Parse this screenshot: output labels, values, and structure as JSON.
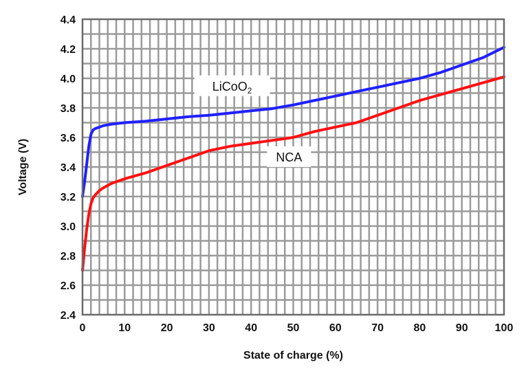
{
  "chart_data": {
    "type": "line",
    "xlabel": "State of charge (%)",
    "ylabel": "Voltage (V)",
    "xlim": [
      0,
      100
    ],
    "ylim": [
      2.4,
      4.4
    ],
    "x_ticks": [
      0,
      10,
      20,
      30,
      40,
      50,
      60,
      70,
      80,
      90,
      100
    ],
    "y_ticks": [
      2.4,
      2.6,
      2.8,
      3.0,
      3.2,
      3.4,
      3.6,
      3.8,
      4.0,
      4.2,
      4.4
    ],
    "x_tick_labels": [
      "0",
      "10",
      "20",
      "30",
      "40",
      "50",
      "60",
      "70",
      "80",
      "90",
      "100"
    ],
    "y_tick_labels": [
      "2.4",
      "2.6",
      "2.8",
      "3.0",
      "3.2",
      "3.4",
      "3.6",
      "3.8",
      "4.0",
      "4.2",
      "4.4"
    ],
    "grid": true,
    "series": [
      {
        "label_text": "LiCoO",
        "label_subscript": "2",
        "color": "#2020ff",
        "x": [
          0,
          0.5,
          1,
          1.5,
          2,
          2.5,
          3,
          4,
          5,
          7,
          10,
          15,
          20,
          25,
          30,
          35,
          40,
          45,
          50,
          55,
          60,
          65,
          70,
          75,
          80,
          85,
          90,
          95,
          100
        ],
        "y": [
          3.2,
          3.3,
          3.42,
          3.54,
          3.62,
          3.65,
          3.66,
          3.67,
          3.68,
          3.69,
          3.7,
          3.71,
          3.725,
          3.74,
          3.75,
          3.765,
          3.78,
          3.795,
          3.82,
          3.85,
          3.88,
          3.91,
          3.94,
          3.97,
          4.0,
          4.04,
          4.09,
          4.14,
          4.21
        ]
      },
      {
        "label_text": "NCA",
        "label_subscript": "",
        "color": "#ff1010",
        "x": [
          0,
          0.5,
          1,
          1.5,
          2,
          2.5,
          3,
          4,
          5,
          7,
          10,
          15,
          20,
          25,
          30,
          35,
          40,
          45,
          50,
          55,
          60,
          65,
          70,
          75,
          80,
          85,
          90,
          95,
          100
        ],
        "y": [
          2.7,
          2.85,
          2.98,
          3.08,
          3.15,
          3.19,
          3.21,
          3.24,
          3.26,
          3.29,
          3.32,
          3.36,
          3.41,
          3.46,
          3.51,
          3.54,
          3.56,
          3.58,
          3.6,
          3.64,
          3.67,
          3.7,
          3.75,
          3.8,
          3.85,
          3.89,
          3.93,
          3.97,
          4.01
        ]
      }
    ]
  }
}
